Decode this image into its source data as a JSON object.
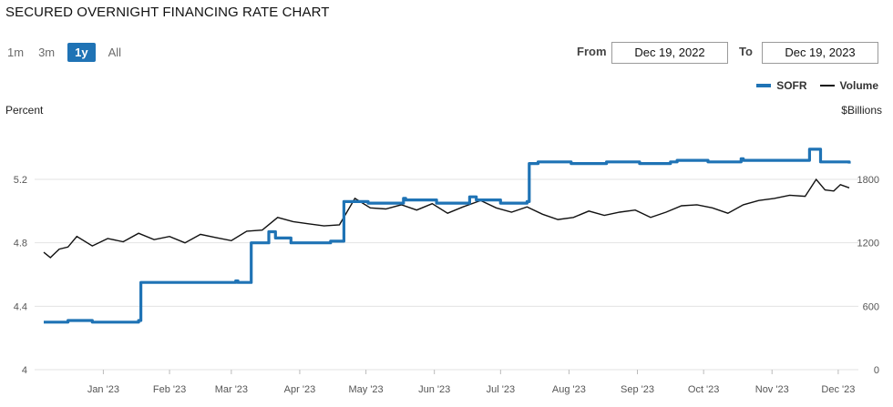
{
  "header": {
    "title": "SECURED OVERNIGHT FINANCING RATE CHART"
  },
  "range_buttons": [
    {
      "label": "1m",
      "active": false
    },
    {
      "label": "3m",
      "active": false
    },
    {
      "label": "1y",
      "active": true
    },
    {
      "label": "All",
      "active": false
    }
  ],
  "date_range": {
    "from_label": "From",
    "from_value": "Dec 19, 2022",
    "to_label": "To",
    "to_value": "Dec 19, 2023"
  },
  "colors": {
    "sofr": "#1f73b5",
    "volume": "#111111",
    "grid": "#e3e3e3"
  },
  "chart_data": {
    "type": "line",
    "title": "SECURED OVERNIGHT FINANCING RATE CHART",
    "x_labels": [
      "Jan '23",
      "Feb '23",
      "Mar '23",
      "Apr '23",
      "May '23",
      "Jun '23",
      "Jul '23",
      "Aug '23",
      "Sep '23",
      "Oct '23",
      "Nov '23",
      "Dec '23"
    ],
    "y_left": {
      "label": "Percent",
      "ticks": [
        "5.2",
        "4.8",
        "4.4",
        "4"
      ],
      "range": [
        4.0,
        5.6
      ]
    },
    "y_right": {
      "label": "$Billions",
      "ticks": [
        "1800",
        "1200",
        "600",
        "0"
      ],
      "range": [
        0,
        2400
      ]
    },
    "grid": "horizontal",
    "legend_position": "top-right",
    "series": [
      {
        "name": "SOFR",
        "axis": "left",
        "points": [
          [
            "2022-12-19",
            4.3
          ],
          [
            "2022-12-27",
            4.3
          ],
          [
            "2022-12-30",
            4.31
          ],
          [
            "2023-01-03",
            4.31
          ],
          [
            "2023-01-10",
            4.3
          ],
          [
            "2023-01-17",
            4.3
          ],
          [
            "2023-01-26",
            4.3
          ],
          [
            "2023-01-31",
            4.31
          ],
          [
            "2023-02-01",
            4.55
          ],
          [
            "2023-02-15",
            4.55
          ],
          [
            "2023-03-01",
            4.55
          ],
          [
            "2023-03-15",
            4.55
          ],
          [
            "2023-03-16",
            4.56
          ],
          [
            "2023-03-17",
            4.55
          ],
          [
            "2023-03-22",
            4.55
          ],
          [
            "2023-03-23",
            4.8
          ],
          [
            "2023-03-31",
            4.87
          ],
          [
            "2023-04-03",
            4.83
          ],
          [
            "2023-04-10",
            4.8
          ],
          [
            "2023-04-28",
            4.81
          ],
          [
            "2023-05-01",
            4.81
          ],
          [
            "2023-05-03",
            4.81
          ],
          [
            "2023-05-04",
            5.06
          ],
          [
            "2023-05-15",
            5.05
          ],
          [
            "2023-05-31",
            5.08
          ],
          [
            "2023-06-01",
            5.07
          ],
          [
            "2023-06-15",
            5.05
          ],
          [
            "2023-06-30",
            5.09
          ],
          [
            "2023-07-03",
            5.07
          ],
          [
            "2023-07-14",
            5.05
          ],
          [
            "2023-07-26",
            5.06
          ],
          [
            "2023-07-27",
            5.3
          ],
          [
            "2023-07-31",
            5.31
          ],
          [
            "2023-08-15",
            5.3
          ],
          [
            "2023-08-31",
            5.31
          ],
          [
            "2023-09-15",
            5.3
          ],
          [
            "2023-09-29",
            5.31
          ],
          [
            "2023-10-02",
            5.32
          ],
          [
            "2023-10-16",
            5.31
          ],
          [
            "2023-10-31",
            5.33
          ],
          [
            "2023-11-01",
            5.32
          ],
          [
            "2023-11-15",
            5.32
          ],
          [
            "2023-11-30",
            5.32
          ],
          [
            "2023-12-01",
            5.39
          ],
          [
            "2023-12-06",
            5.31
          ],
          [
            "2023-12-15",
            5.31
          ],
          [
            "2023-12-19",
            5.3
          ]
        ]
      },
      {
        "name": "Volume",
        "axis": "right",
        "points": [
          [
            "2022-12-19",
            1110
          ],
          [
            "2022-12-22",
            1060
          ],
          [
            "2022-12-26",
            1140
          ],
          [
            "2022-12-30",
            1160
          ],
          [
            "2023-01-03",
            1260
          ],
          [
            "2023-01-10",
            1170
          ],
          [
            "2023-01-17",
            1240
          ],
          [
            "2023-01-24",
            1210
          ],
          [
            "2023-01-31",
            1290
          ],
          [
            "2023-02-07",
            1230
          ],
          [
            "2023-02-14",
            1260
          ],
          [
            "2023-02-21",
            1200
          ],
          [
            "2023-02-28",
            1280
          ],
          [
            "2023-03-07",
            1250
          ],
          [
            "2023-03-14",
            1220
          ],
          [
            "2023-03-21",
            1310
          ],
          [
            "2023-03-28",
            1320
          ],
          [
            "2023-04-04",
            1440
          ],
          [
            "2023-04-11",
            1400
          ],
          [
            "2023-04-18",
            1380
          ],
          [
            "2023-04-25",
            1360
          ],
          [
            "2023-05-02",
            1370
          ],
          [
            "2023-05-09",
            1620
          ],
          [
            "2023-05-16",
            1530
          ],
          [
            "2023-05-23",
            1520
          ],
          [
            "2023-05-30",
            1560
          ],
          [
            "2023-06-06",
            1510
          ],
          [
            "2023-06-13",
            1570
          ],
          [
            "2023-06-20",
            1480
          ],
          [
            "2023-06-27",
            1540
          ],
          [
            "2023-07-05",
            1600
          ],
          [
            "2023-07-12",
            1530
          ],
          [
            "2023-07-19",
            1490
          ],
          [
            "2023-07-26",
            1540
          ],
          [
            "2023-08-02",
            1470
          ],
          [
            "2023-08-09",
            1420
          ],
          [
            "2023-08-16",
            1440
          ],
          [
            "2023-08-23",
            1500
          ],
          [
            "2023-08-30",
            1460
          ],
          [
            "2023-09-06",
            1490
          ],
          [
            "2023-09-13",
            1510
          ],
          [
            "2023-09-20",
            1440
          ],
          [
            "2023-09-27",
            1490
          ],
          [
            "2023-10-04",
            1550
          ],
          [
            "2023-10-11",
            1560
          ],
          [
            "2023-10-18",
            1530
          ],
          [
            "2023-10-25",
            1480
          ],
          [
            "2023-11-01",
            1560
          ],
          [
            "2023-11-08",
            1600
          ],
          [
            "2023-11-15",
            1620
          ],
          [
            "2023-11-22",
            1650
          ],
          [
            "2023-11-29",
            1640
          ],
          [
            "2023-12-04",
            1800
          ],
          [
            "2023-12-08",
            1700
          ],
          [
            "2023-12-12",
            1690
          ],
          [
            "2023-12-15",
            1750
          ],
          [
            "2023-12-19",
            1720
          ]
        ]
      }
    ]
  }
}
